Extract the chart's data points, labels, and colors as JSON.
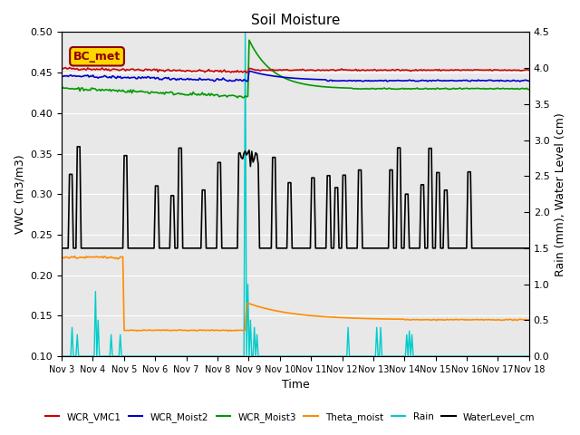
{
  "title": "Soil Moisture",
  "ylabel_left": "VWC (m3/m3)",
  "ylabel_right": "Rain (mm), Water Level (cm)",
  "xlabel": "Time",
  "ylim_left": [
    0.1,
    0.5
  ],
  "ylim_right": [
    0.0,
    4.5
  ],
  "bg_color": "#e8e8e8",
  "annotation_text": "BC_met",
  "annotation_color": "#8b0000",
  "annotation_bg": "#ffd700",
  "x_tick_labels": [
    "Nov 3",
    "Nov 4",
    "Nov 5",
    "Nov 6",
    "Nov 7",
    "Nov 8",
    "Nov 9",
    "Nov 10",
    "Nov 11",
    "Nov 12",
    "Nov 13",
    "Nov 14",
    "Nov 15",
    "Nov 16",
    "Nov 17",
    "Nov 18"
  ],
  "series": {
    "WCR_VMC1": {
      "color": "#cc0000",
      "lw": 1.2
    },
    "WCR_Moist2": {
      "color": "#0000cc",
      "lw": 1.2
    },
    "WCR_Moist3": {
      "color": "#009900",
      "lw": 1.2
    },
    "Theta_moist": {
      "color": "#ff8c00",
      "lw": 1.2
    },
    "Rain": {
      "color": "#00cccc",
      "lw": 1.0
    },
    "WaterLevel_cm": {
      "color": "#000000",
      "lw": 1.2
    }
  }
}
